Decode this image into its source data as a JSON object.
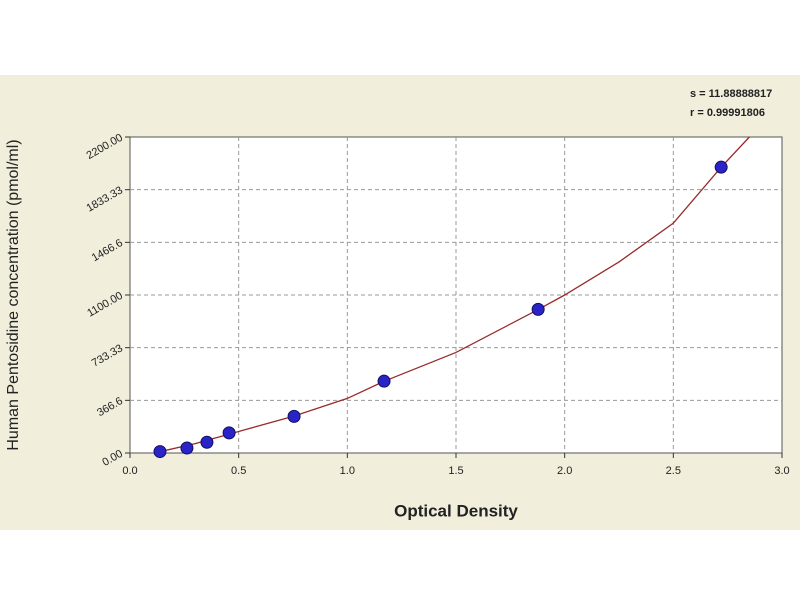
{
  "chart_data": {
    "type": "scatter",
    "x_label": "Optical Density",
    "y_label": "Human Pentosidine concentration (pmol/ml)",
    "annotations": [
      "s = 11.88888817",
      "r = 0.99991806"
    ],
    "series": [
      {
        "mode": "markers",
        "color": "#2a24c8",
        "x": [
          0.138,
          0.262,
          0.354,
          0.456,
          0.755,
          1.169,
          1.878,
          2.72
        ],
        "values": [
          10,
          35,
          75,
          140,
          255,
          500,
          1000,
          1990
        ]
      },
      {
        "mode": "line",
        "color": "#9a2a2a",
        "x": [
          0.14,
          0.3,
          0.5,
          0.75,
          1.0,
          1.17,
          1.5,
          1.88,
          2.0,
          2.25,
          2.5,
          2.72,
          2.85
        ],
        "values": [
          10,
          65,
          150,
          255,
          380,
          500,
          700,
          1000,
          1100,
          1330,
          1600,
          1990,
          2200
        ]
      }
    ],
    "xlim": [
      0,
      3
    ],
    "xticks": [
      {
        "value": 0,
        "label": "0.0"
      },
      0.5,
      {
        "value": 1,
        "label": "1.0"
      },
      1.5,
      {
        "value": 2,
        "label": "2.0"
      },
      2.5,
      {
        "value": 3,
        "label": "3.0"
      }
    ],
    "ylim": [
      0,
      2200
    ],
    "yticks": [
      {
        "value": 0,
        "label": "0.00"
      },
      366.6,
      733.33,
      {
        "value": 1100,
        "label": "1100.00"
      },
      1466.6,
      1833.33,
      {
        "value": 2200,
        "label": "2200.00"
      }
    ],
    "grid": true
  }
}
